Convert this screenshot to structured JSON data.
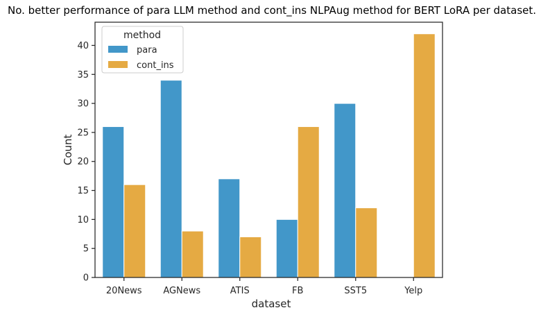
{
  "chart_data": {
    "type": "bar",
    "title": "No. better performance of para LLM method and cont_ins NLPAug method for BERT LoRA per dataset.",
    "xlabel": "dataset",
    "ylabel": "Count",
    "categories": [
      "20News",
      "AGNews",
      "ATIS",
      "FB",
      "SST5",
      "Yelp"
    ],
    "series": [
      {
        "name": "para",
        "color": "#4297c9",
        "values": [
          26,
          34,
          17,
          10,
          30,
          0
        ]
      },
      {
        "name": "cont_ins",
        "color": "#e5aa43",
        "values": [
          16,
          8,
          7,
          26,
          12,
          42
        ]
      }
    ],
    "ylim": [
      0,
      44
    ],
    "yticks": [
      0,
      5,
      10,
      15,
      20,
      25,
      30,
      35,
      40
    ],
    "grid": false,
    "legend": {
      "title": "method",
      "placement": "top-left"
    }
  }
}
